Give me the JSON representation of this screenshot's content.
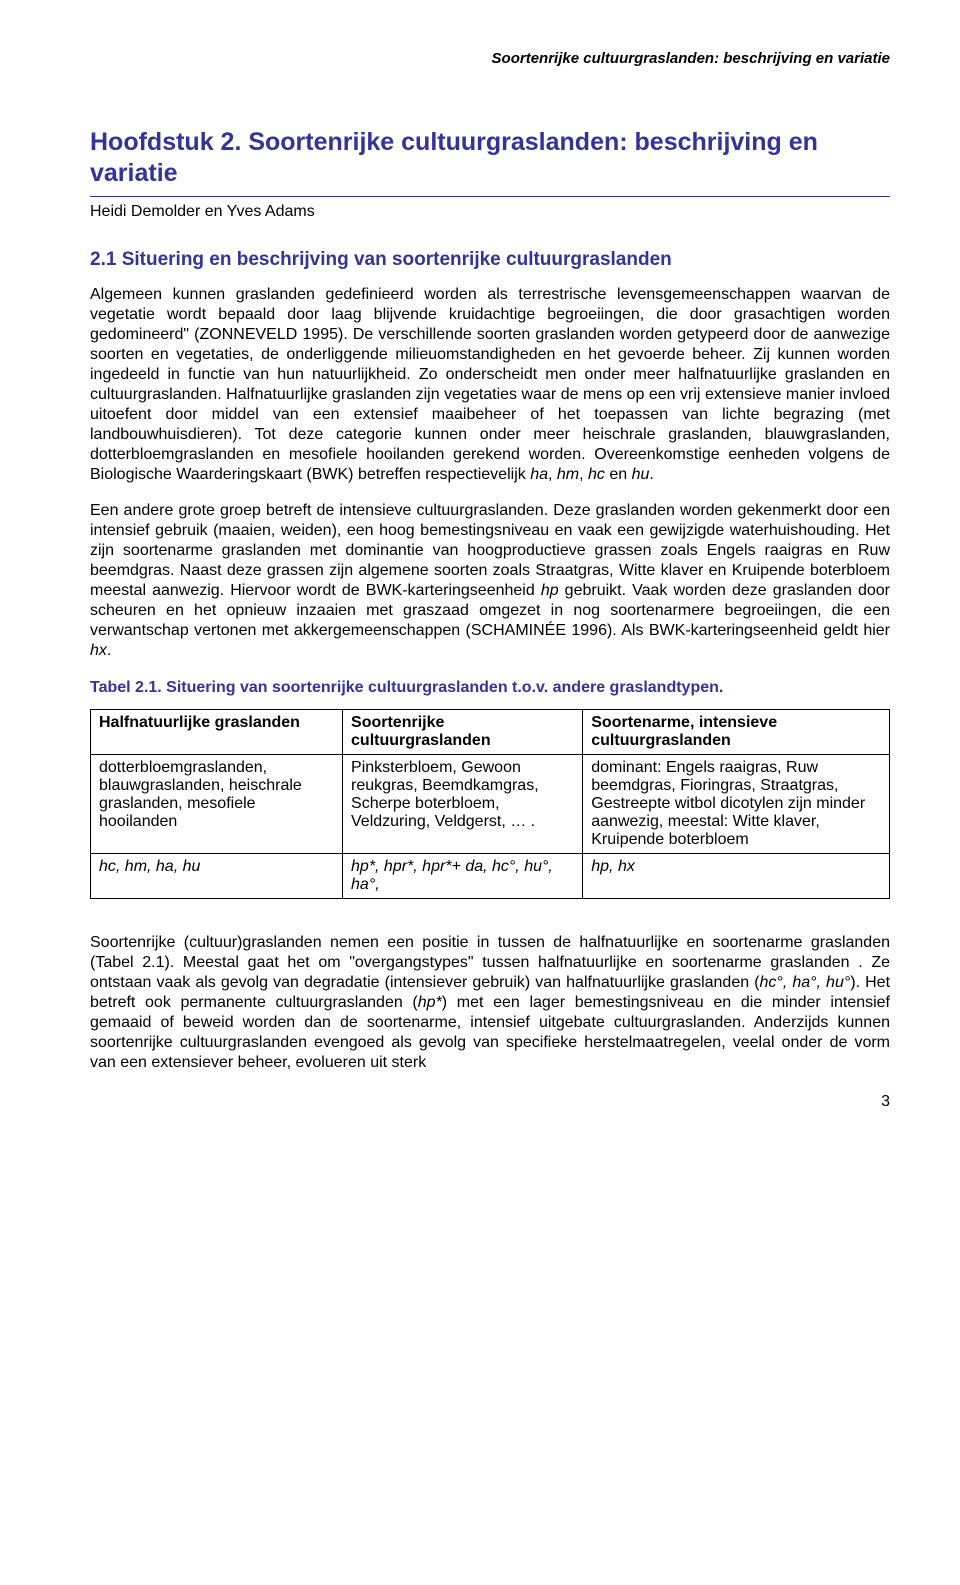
{
  "running_header": "Soortenrijke cultuurgraslanden: beschrijving en variatie",
  "chapter_title": "Hoofdstuk 2. Soortenrijke cultuurgraslanden: beschrijving en variatie",
  "authors": "Heidi Demolder en Yves Adams",
  "section_title": "2.1 Situering en beschrijving van soortenrijke cultuurgraslanden",
  "para1_html": "Algemeen kunnen graslanden gedefinieerd worden als terrestrische levensgemeenschappen waarvan de vegetatie wordt bepaald door laag blijvende kruidachtige begroeiingen, die door grasachtigen worden gedomineerd\" (Z<span class=\"smallcaps\">ONNEVELD</span> 1995). De verschillende soorten graslanden worden getypeerd door de aanwezige soorten en vegetaties, de onderliggende milieuomstandigheden en het gevoerde beheer. Zij kunnen worden ingedeeld in functie van hun natuurlijkheid. Zo onderscheidt men onder meer halfnatuurlijke graslanden en cultuurgraslanden. Halfnatuurlijke graslanden zijn vegetaties waar de mens op een vrij extensieve manier invloed uitoefent door middel van een extensief maaibeheer of het toepassen van lichte begrazing (met landbouwhuisdieren). Tot deze categorie kunnen onder meer heischrale graslanden, blauwgraslanden, dotterbloemgraslanden en mesofiele hooilanden gerekend worden. Overeenkomstige eenheden volgens de Biologische Waarderingskaart (BWK) betreffen respectievelijk <i>ha</i>, <i>hm</i>, <i>hc</i> en <i>hu</i>.",
  "para2_html": "Een andere grote groep betreft de intensieve cultuurgraslanden. Deze graslanden worden gekenmerkt door een intensief gebruik (maaien, weiden), een hoog bemestingsniveau en vaak een gewijzigde waterhuishouding. Het zijn soortenarme graslanden met dominantie van hoogproductieve grassen zoals Engels raaigras en Ruw beemdgras. Naast deze grassen zijn algemene soorten zoals Straatgras, Witte klaver en Kruipende boterbloem meestal aanwezig. Hiervoor wordt de BWK-karteringseenheid <i>hp</i> gebruikt. Vaak worden deze graslanden door scheuren en het opnieuw inzaaien met graszaad omgezet in nog soortenarmere begroeiingen, die een verwantschap vertonen met akkergemeenschappen (S<span class=\"smallcaps\">CHAMINÉE</span> 1996). Als BWK-karteringseenheid geldt hier <i>hx</i>.",
  "table_caption": "Tabel 2.1. Situering van soortenrijke cultuurgraslanden t.o.v. andere graslandtypen.",
  "table": {
    "header": [
      "Halfnatuurlijke graslanden",
      "Soortenrijke cultuurgraslanden",
      "Soortenarme, intensieve cultuurgraslanden"
    ],
    "row_species": [
      "dotterbloemgraslanden, blauwgraslanden, heischrale graslanden, mesofiele hooilanden",
      "Pinksterbloem, Gewoon reukgras, Beemdkamgras, Scherpe boterbloem, Veldzuring, Veldgerst, … .",
      "dominant: Engels raaigras, Ruw beemdgras, Fioringras, Straatgras, Gestreepte witbol dicotylen zijn minder aanwezig, meestal: Witte klaver, Kruipende boterbloem"
    ],
    "row_codes": [
      "hc, hm, ha, hu",
      "hp*, hpr*, hpr*+ da, hc°, hu°, ha°,",
      "hp, hx"
    ]
  },
  "para3_html": "Soortenrijke (cultuur)graslanden nemen een positie in tussen de halfnatuurlijke en soortenarme graslanden (Tabel 2.1). Meestal gaat het om \"overgangstypes\" tussen halfnatuurlijke en soortenarme graslanden . Ze ontstaan vaak als gevolg van degradatie (intensiever gebruik) van halfnatuurlijke graslanden (<i>hc°, ha°, hu°</i>). Het betreft ook permanente cultuurgraslanden (<i>hp*</i>) met een lager bemestingsniveau en die minder intensief gemaaid of beweid worden dan de soortenarme, intensief uitgebate cultuurgraslanden. Anderzijds kunnen soortenrijke cultuurgraslanden evengoed als gevolg van specifieke herstelmaatregelen, veelal onder de vorm van een extensiever beheer, evolueren uit sterk",
  "page_number": "3",
  "colors": {
    "heading": "#333399",
    "text": "#000000",
    "background": "#ffffff",
    "border": "#000000"
  }
}
